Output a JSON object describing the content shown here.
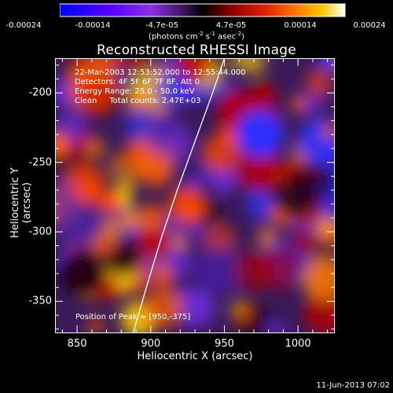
{
  "chart_data": {
    "type": "heatmap",
    "title": "Reconstructed RHESSI Image",
    "xlabel": "Heliocentric X (arcsec)",
    "ylabel": "Heliocentric Y (arcsec)",
    "xlim": [
      835,
      1025
    ],
    "ylim": [
      -373,
      -175
    ],
    "x_ticks": [
      "850",
      "900",
      "950",
      "1000"
    ],
    "y_ticks": [
      "-200",
      "-250",
      "-300",
      "-350"
    ],
    "colorbar": {
      "range": [
        -0.00024,
        0.00024
      ],
      "tick_labels": [
        "-0.00024",
        "-0.00014",
        "-4.7e-05",
        "4.7e-05",
        "0.00014",
        "0.00024"
      ],
      "units_parts": [
        "(photons cm",
        "-2",
        " s",
        "-1",
        " asec",
        "-2",
        ")"
      ],
      "palette": [
        "#0000ff",
        "#5a00ff",
        "#8a30e0",
        "#3a1050",
        "#000000",
        "#7a0000",
        "#d02000",
        "#ff6a00",
        "#ffc000",
        "#ffffff"
      ]
    },
    "info_lines": [
      "22-Mar-2003 12:53:52.000 to 12:55:44.000",
      "Detectors: 4F 5F 6F 7F 8F, Att 0",
      "Energy Range: 25.0 - 50.0 keV",
      "Clean     Total counts: 2.47E+03"
    ],
    "peak_label": "Position of Peak = [950,-375]",
    "limb_curve": [
      [
        888,
        -373
      ],
      [
        897,
        -340
      ],
      [
        907,
        -305
      ],
      [
        918,
        -270
      ],
      [
        930,
        -235
      ],
      [
        942,
        -200
      ],
      [
        950,
        -175
      ]
    ]
  },
  "timestamp": "11-Jun-2013 07:02"
}
